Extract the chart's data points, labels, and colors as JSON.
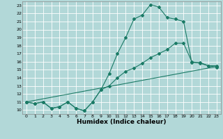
{
  "xlabel": "Humidex (Indice chaleur)",
  "background_color": "#b2d8d8",
  "grid_color": "#ffffff",
  "line_color": "#1a7a65",
  "xlim": [
    -0.5,
    23.5
  ],
  "ylim": [
    9.5,
    23.5
  ],
  "xticks": [
    0,
    1,
    2,
    3,
    4,
    5,
    6,
    7,
    8,
    9,
    10,
    11,
    12,
    13,
    14,
    15,
    16,
    17,
    18,
    19,
    20,
    21,
    22,
    23
  ],
  "yticks": [
    10,
    11,
    12,
    13,
    14,
    15,
    16,
    17,
    18,
    19,
    20,
    21,
    22,
    23
  ],
  "line1_x": [
    0,
    1,
    2,
    3,
    4,
    5,
    6,
    7,
    8,
    9,
    10,
    11,
    12,
    13,
    14,
    15,
    16,
    17,
    18,
    19,
    20,
    21,
    22,
    23
  ],
  "line1_y": [
    11.0,
    10.8,
    11.0,
    10.2,
    10.4,
    11.0,
    10.2,
    9.9,
    11.0,
    12.5,
    14.5,
    17.0,
    19.0,
    21.3,
    21.8,
    23.1,
    22.8,
    21.5,
    21.3,
    21.0,
    15.9,
    15.9,
    15.5,
    15.5
  ],
  "line2_x": [
    0,
    1,
    2,
    3,
    4,
    5,
    6,
    7,
    8,
    9,
    10,
    11,
    12,
    13,
    14,
    15,
    16,
    17,
    18,
    19,
    20,
    21,
    22,
    23
  ],
  "line2_y": [
    11.0,
    10.8,
    11.0,
    10.2,
    10.4,
    11.0,
    10.2,
    9.9,
    11.0,
    12.5,
    13.0,
    14.0,
    14.8,
    15.2,
    15.8,
    16.5,
    17.0,
    17.5,
    18.3,
    18.3,
    16.0,
    15.8,
    15.5,
    15.3
  ],
  "line3_x": [
    0,
    23
  ],
  "line3_y": [
    11.0,
    15.4
  ]
}
